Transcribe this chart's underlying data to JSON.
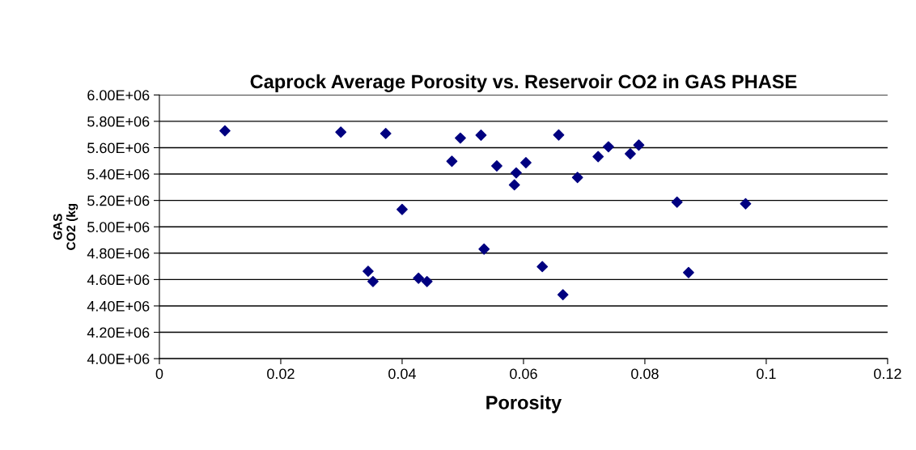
{
  "chart_data": {
    "type": "scatter",
    "title": "Caprock Average Porosity vs. Reservoir CO2 in GAS PHASE",
    "xlabel": "Porosity",
    "ylabel": "GAS\nCO2 (kg",
    "x": [
      0.0108,
      0.0299,
      0.0373,
      0.0496,
      0.053,
      0.0482,
      0.0556,
      0.04,
      0.0535,
      0.0344,
      0.0352,
      0.0427,
      0.0441,
      0.0658,
      0.0588,
      0.0585,
      0.0604,
      0.0689,
      0.0723,
      0.074,
      0.0776,
      0.079,
      0.0853,
      0.0966,
      0.0631,
      0.0665,
      0.0872
    ],
    "series": [
      {
        "color": "#000080",
        "values": [
          5728000,
          5718000,
          5708000,
          5673000,
          5695000,
          5497000,
          5462000,
          5132000,
          4831000,
          4663000,
          4585000,
          4610000,
          4585000,
          5697000,
          5409000,
          5318000,
          5486000,
          5374000,
          5532000,
          5607000,
          5554000,
          5620000,
          5187000,
          5175000,
          4698000,
          4485000,
          4653000
        ]
      }
    ],
    "xlim": [
      0,
      0.12
    ],
    "xticks": [
      0,
      0.02,
      0.04,
      0.06,
      0.08,
      0.1,
      0.12
    ],
    "ylim": [
      4000000,
      6000000
    ],
    "yticks": [
      {
        "value": 4000000,
        "label": "4.00E+06"
      },
      {
        "value": 4200000,
        "label": "4.20E+06"
      },
      {
        "value": 4400000,
        "label": "4.40E+06"
      },
      {
        "value": 4600000,
        "label": "4.60E+06"
      },
      {
        "value": 4800000,
        "label": "4.80E+06"
      },
      {
        "value": 5000000,
        "label": "5.00E+06"
      },
      {
        "value": 5200000,
        "label": "5.20E+06"
      },
      {
        "value": 5400000,
        "label": "5.40E+06"
      },
      {
        "value": 5600000,
        "label": "5.60E+06"
      },
      {
        "value": 5800000,
        "label": "5.80E+06"
      },
      {
        "value": 6000000,
        "label": "6.00E+06"
      }
    ],
    "grid": "y",
    "marker": "diamond",
    "legend": false
  }
}
